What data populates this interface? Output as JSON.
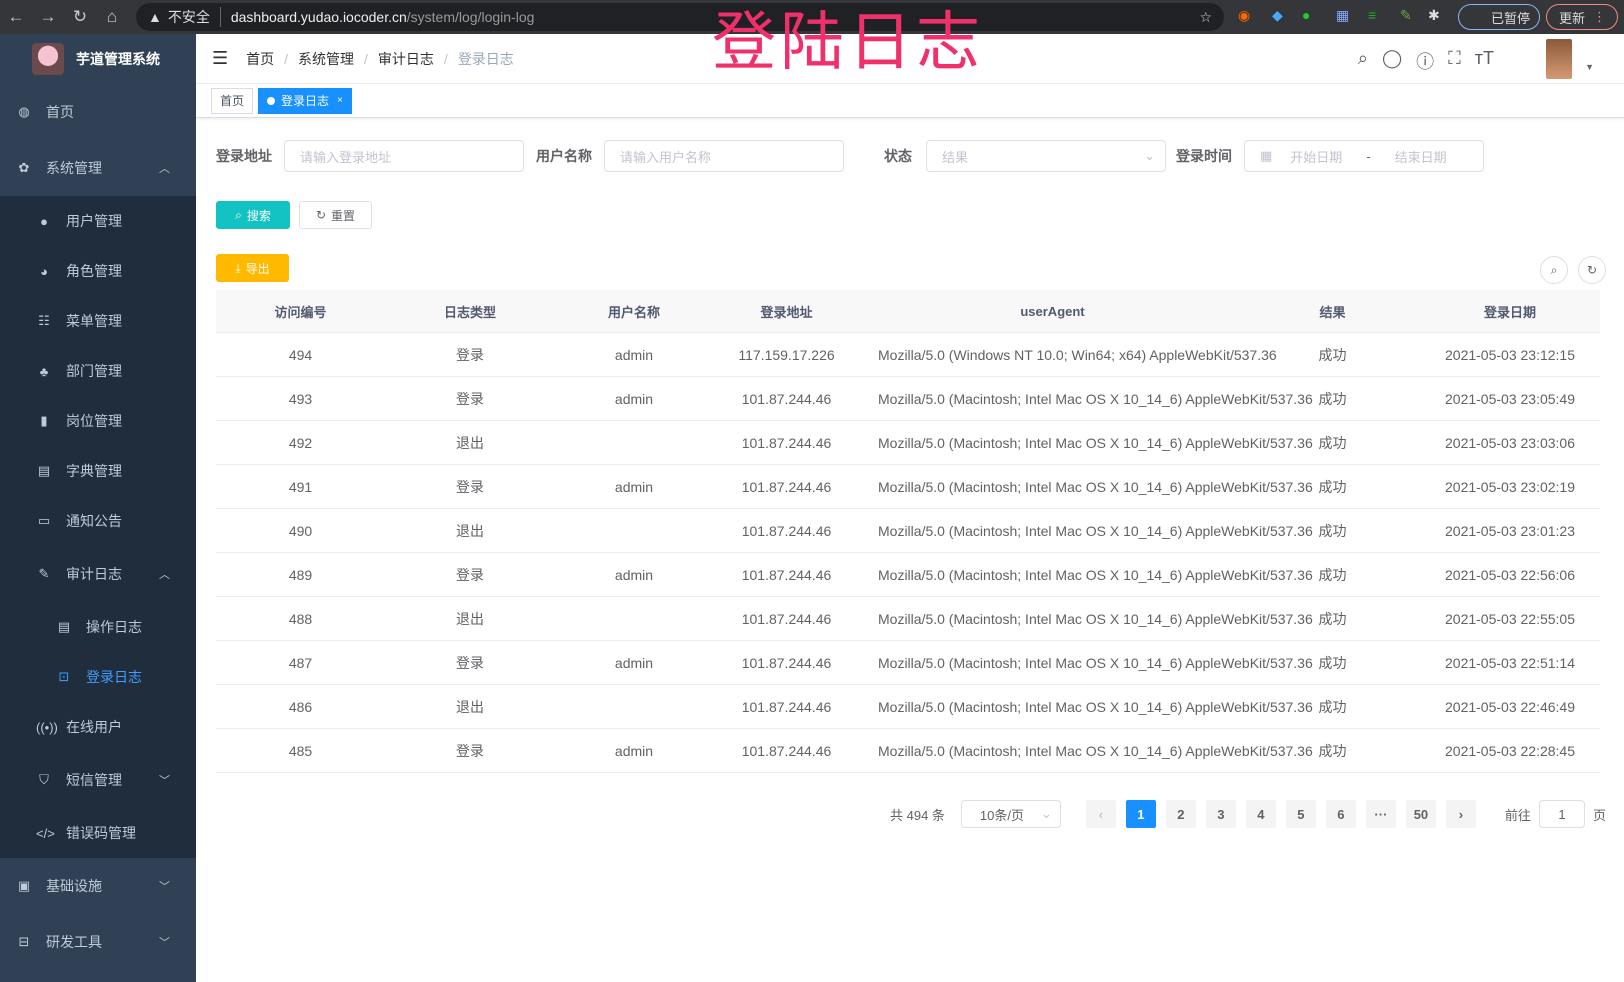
{
  "browser": {
    "insecure": "不安全",
    "host": "dashboard.yudao.iocoder.cn",
    "path": "/system/log/login-log",
    "paused": "已暂停",
    "update": "更新"
  },
  "app": {
    "title": "芋道管理系统",
    "watermark": "登陆日志"
  },
  "sidebar": {
    "home": "首页",
    "system": "系统管理",
    "system_children": [
      "用户管理",
      "角色管理",
      "菜单管理",
      "部门管理",
      "岗位管理",
      "字典管理",
      "通知公告"
    ],
    "audit": "审计日志",
    "audit_children": [
      "操作日志",
      "登录日志"
    ],
    "after": [
      "在线用户"
    ],
    "sms": "短信管理",
    "errcode": "错误码管理",
    "infra": "基础设施",
    "devtools": "研发工具"
  },
  "breadcrumb": [
    "首页",
    "系统管理",
    "审计日志",
    "登录日志"
  ],
  "tags": {
    "home": "首页",
    "active": "登录日志",
    "close": "×"
  },
  "form": {
    "ip_label": "登录地址",
    "ip_placeholder": "请输入登录地址",
    "user_label": "用户名称",
    "user_placeholder": "请输入用户名称",
    "status_label": "状态",
    "status_placeholder": "结果",
    "time_label": "登录时间",
    "start_placeholder": "开始日期",
    "range_sep": "-",
    "end_placeholder": "结束日期",
    "search": "搜索",
    "reset": "重置",
    "export": "导出"
  },
  "colors": {
    "primary": "#1890ff",
    "search": "#13c2c2",
    "export": "#ffba00",
    "sidebar": "#304156"
  },
  "table": {
    "columns": [
      "访问编号",
      "日志类型",
      "用户名称",
      "登录地址",
      "userAgent",
      "结果",
      "登录日期"
    ],
    "rows": [
      [
        "494",
        "登录",
        "admin",
        "117.159.17.226",
        "Mozilla/5.0 (Windows NT 10.0; Win64; x64) AppleWebKit/537.36",
        "成功",
        "2021-05-03 23:12:15"
      ],
      [
        "493",
        "登录",
        "admin",
        "101.87.244.46",
        "Mozilla/5.0 (Macintosh; Intel Mac OS X 10_14_6) AppleWebKit/537.36",
        "成功",
        "2021-05-03 23:05:49"
      ],
      [
        "492",
        "退出",
        "",
        "101.87.244.46",
        "Mozilla/5.0 (Macintosh; Intel Mac OS X 10_14_6) AppleWebKit/537.36",
        "成功",
        "2021-05-03 23:03:06"
      ],
      [
        "491",
        "登录",
        "admin",
        "101.87.244.46",
        "Mozilla/5.0 (Macintosh; Intel Mac OS X 10_14_6) AppleWebKit/537.36",
        "成功",
        "2021-05-03 23:02:19"
      ],
      [
        "490",
        "退出",
        "",
        "101.87.244.46",
        "Mozilla/5.0 (Macintosh; Intel Mac OS X 10_14_6) AppleWebKit/537.36",
        "成功",
        "2021-05-03 23:01:23"
      ],
      [
        "489",
        "登录",
        "admin",
        "101.87.244.46",
        "Mozilla/5.0 (Macintosh; Intel Mac OS X 10_14_6) AppleWebKit/537.36",
        "成功",
        "2021-05-03 22:56:06"
      ],
      [
        "488",
        "退出",
        "",
        "101.87.244.46",
        "Mozilla/5.0 (Macintosh; Intel Mac OS X 10_14_6) AppleWebKit/537.36",
        "成功",
        "2021-05-03 22:55:05"
      ],
      [
        "487",
        "登录",
        "admin",
        "101.87.244.46",
        "Mozilla/5.0 (Macintosh; Intel Mac OS X 10_14_6) AppleWebKit/537.36",
        "成功",
        "2021-05-03 22:51:14"
      ],
      [
        "486",
        "退出",
        "",
        "101.87.244.46",
        "Mozilla/5.0 (Macintosh; Intel Mac OS X 10_14_6) AppleWebKit/537.36",
        "成功",
        "2021-05-03 22:46:49"
      ],
      [
        "485",
        "登录",
        "admin",
        "101.87.244.46",
        "Mozilla/5.0 (Macintosh; Intel Mac OS X 10_14_6) AppleWebKit/537.36",
        "成功",
        "2021-05-03 22:28:45"
      ]
    ]
  },
  "pagination": {
    "total": "共 494 条",
    "page_size": "10条/页",
    "pages": [
      "1",
      "2",
      "3",
      "4",
      "5",
      "6",
      "···",
      "50"
    ],
    "current": "1",
    "goto_label": "前往",
    "goto_value": "1",
    "goto_suffix": "页",
    "prev": "‹",
    "next": "›"
  }
}
